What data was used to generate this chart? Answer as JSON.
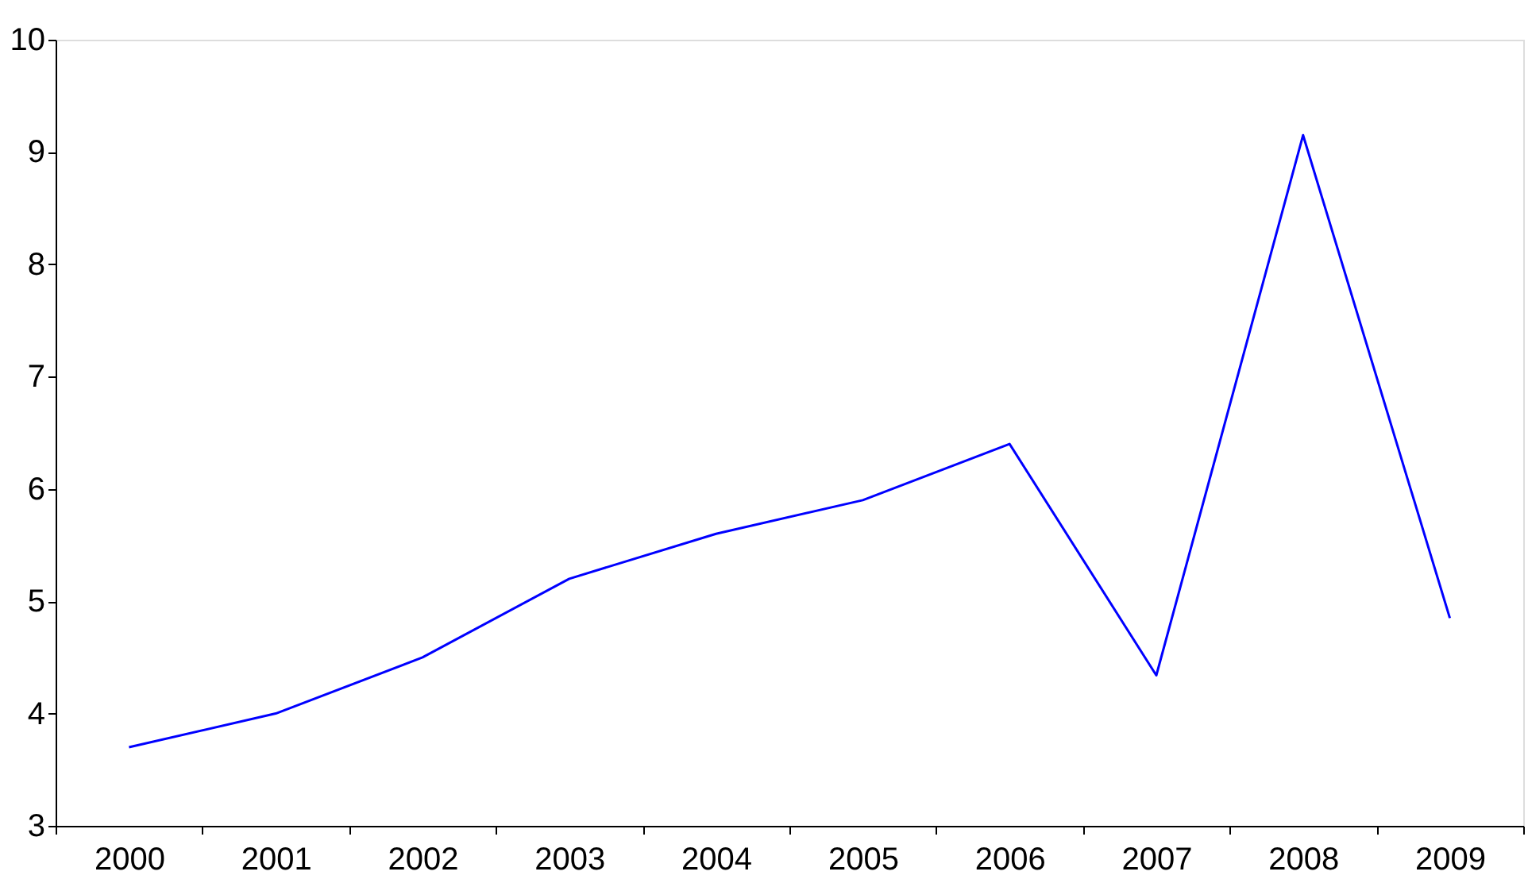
{
  "chart_data": {
    "type": "line",
    "categories": [
      "2000",
      "2001",
      "2002",
      "2003",
      "2004",
      "2005",
      "2006",
      "2007",
      "2008",
      "2009"
    ],
    "series": [
      {
        "color": "#0000ff",
        "values": [
          3.7,
          4.0,
          4.5,
          5.2,
          5.6,
          5.9,
          6.4,
          4.34,
          9.15,
          4.85
        ]
      }
    ],
    "ylim": [
      3,
      10
    ],
    "yticks": [
      3,
      4,
      5,
      6,
      7,
      8,
      9,
      10
    ],
    "grid": false,
    "legend": false,
    "marker": "none",
    "line_style": "solid"
  }
}
